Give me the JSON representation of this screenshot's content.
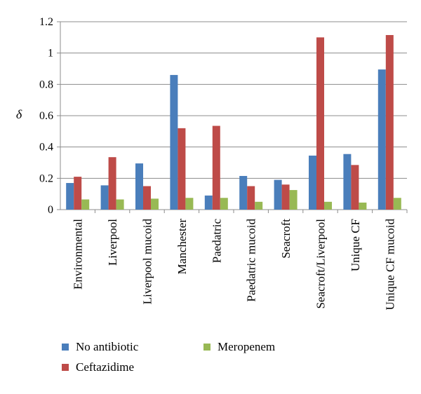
{
  "chart_data": {
    "type": "bar",
    "title": "",
    "xlabel": "",
    "ylabel": "δ",
    "ylim": [
      0,
      1.2
    ],
    "yticks": [
      "0",
      "0.2",
      "0.4",
      "0.6",
      "0.8",
      "1",
      "1.2"
    ],
    "ytick_values": [
      0,
      0.2,
      0.4,
      0.6,
      0.8,
      1.0,
      1.2
    ],
    "grid": true,
    "legend_position": "bottom",
    "categories": [
      "Environmental",
      "Liverpool",
      "Liverpool mucoid",
      "Manchester",
      "Paedatric",
      "Paedatric mucoid",
      "Seacroft",
      "Seacroft/Liverpool",
      "Unique CF",
      "Unique CF mucoid"
    ],
    "series": [
      {
        "name": "No antibiotic",
        "color": "#4A7EBB",
        "values": [
          0.17,
          0.155,
          0.295,
          0.86,
          0.09,
          0.215,
          0.19,
          0.345,
          0.355,
          0.895
        ]
      },
      {
        "name": "Ceftazidime",
        "color": "#BE4B48",
        "values": [
          0.21,
          0.335,
          0.15,
          0.52,
          0.535,
          0.15,
          0.16,
          1.1,
          0.285,
          1.115
        ]
      },
      {
        "name": "Meropenem",
        "color": "#98B954",
        "values": [
          0.065,
          0.065,
          0.07,
          0.075,
          0.075,
          0.05,
          0.125,
          0.05,
          0.045,
          0.075
        ]
      }
    ]
  }
}
